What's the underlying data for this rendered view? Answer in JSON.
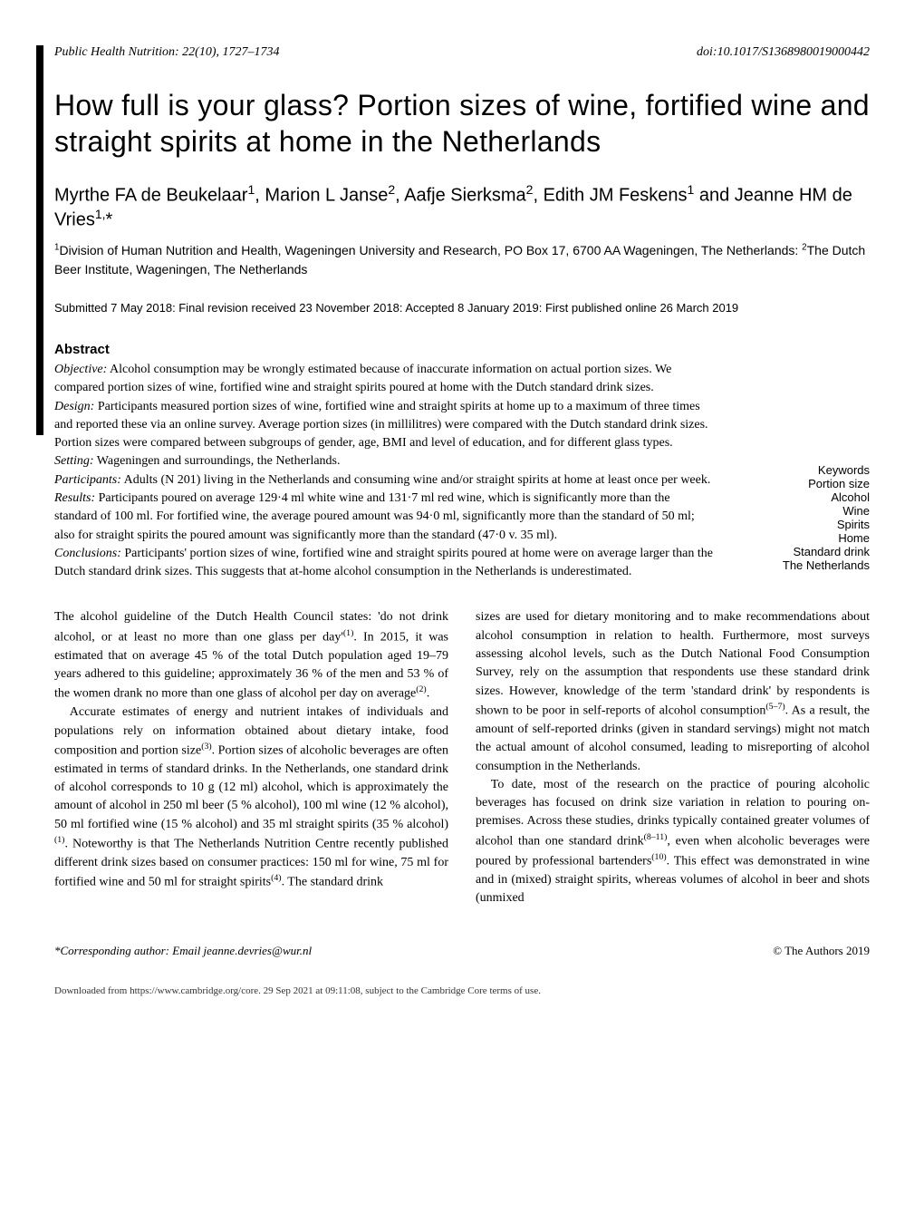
{
  "header": {
    "journal": "Public Health Nutrition: 22(10), 1727–1734",
    "doi": "doi:10.1017/S1368980019000442"
  },
  "title": "How full is your glass? Portion sizes of wine, fortified wine and straight spirits at home in the Netherlands",
  "authors_html": "Myrthe FA de Beukelaar<sup>1</sup>, Marion L Janse<sup>2</sup>, Aafje Sierksma<sup>2</sup>, Edith JM Feskens<sup>1</sup> and Jeanne HM de Vries<sup>1,</sup>*",
  "affiliations_html": "<sup>1</sup>Division of Human Nutrition and Health, Wageningen University and Research, PO Box 17, 6700 AA Wageningen, The Netherlands: <sup>2</sup>The Dutch Beer Institute, Wageningen, The Netherlands",
  "dates": "Submitted 7 May 2018: Final revision received 23 November 2018: Accepted 8 January 2019: First published online 26 March 2019",
  "abstract_heading": "Abstract",
  "abstract": {
    "objective": "Alcohol consumption may be wrongly estimated because of inaccurate information on actual portion sizes. We compared portion sizes of wine, fortified wine and straight spirits poured at home with the Dutch standard drink sizes.",
    "design": "Participants measured portion sizes of wine, fortified wine and straight spirits at home up to a maximum of three times and reported these via an online survey. Average portion sizes (in millilitres) were compared with the Dutch standard drink sizes. Portion sizes were compared between subgroups of gender, age, BMI and level of education, and for different glass types.",
    "setting": "Wageningen and surroundings, the Netherlands.",
    "participants": "Adults (N 201) living in the Netherlands and consuming wine and/or straight spirits at home at least once per week.",
    "results": "Participants poured on average 129·4 ml white wine and 131·7 ml red wine, which is significantly more than the standard of 100 ml. For fortified wine, the average poured amount was 94·0 ml, significantly more than the standard of 50 ml; also for straight spirits the poured amount was significantly more than the standard (47·0 v. 35 ml).",
    "conclusions": "Participants' portion sizes of wine, fortified wine and straight spirits poured at home were on average larger than the Dutch standard drink sizes. This suggests that at-home alcohol consumption in the Netherlands is underestimated."
  },
  "keywords_heading": "Keywords",
  "keywords": [
    "Portion size",
    "Alcohol",
    "Wine",
    "Spirits",
    "Home",
    "Standard drink",
    "The Netherlands"
  ],
  "body": {
    "col1_p1_html": "The alcohol guideline of the Dutch Health Council states: 'do not drink alcohol, or at least no more than one glass per day'<sup>(1)</sup>. In 2015, it was estimated that on average 45 % of the total Dutch population aged 19–79 years adhered to this guideline; approximately 36 % of the men and 53 % of the women drank no more than one glass of alcohol per day on average<sup>(2)</sup>.",
    "col1_p2_html": "Accurate estimates of energy and nutrient intakes of individuals and populations rely on information obtained about dietary intake, food composition and portion size<sup>(3)</sup>. Portion sizes of alcoholic beverages are often estimated in terms of standard drinks. In the Netherlands, one standard drink of alcohol corresponds to 10 g (12 ml) alcohol, which is approximately the amount of alcohol in 250 ml beer (5 % alcohol), 100 ml wine (12 % alcohol), 50 ml fortified wine (15 % alcohol) and 35 ml straight spirits (35 % alcohol)<sup>(1)</sup>. Noteworthy is that The Netherlands Nutrition Centre recently published different drink sizes based on consumer practices: 150 ml for wine, 75 ml for fortified wine and 50 ml for straight spirits<sup>(4)</sup>. The standard drink",
    "col2_p1_html": "sizes are used for dietary monitoring and to make recommendations about alcohol consumption in relation to health. Furthermore, most surveys assessing alcohol levels, such as the Dutch National Food Consumption Survey, rely on the assumption that respondents use these standard drink sizes. However, knowledge of the term 'standard drink' by respondents is shown to be poor in self-reports of alcohol consumption<sup>(5–7)</sup>. As a result, the amount of self-reported drinks (given in standard servings) might not match the actual amount of alcohol consumed, leading to misreporting of alcohol consumption in the Netherlands.",
    "col2_p2_html": "To date, most of the research on the practice of pouring alcoholic beverages has focused on drink size variation in relation to pouring on-premises. Across these studies, drinks typically contained greater volumes of alcohol than one standard drink<sup>(8–11)</sup>, even when alcoholic beverages were poured by professional bartenders<sup>(10)</sup>. This effect was demonstrated in wine and in (mixed) straight spirits, whereas volumes of alcohol in beer and shots (unmixed"
  },
  "footer": {
    "corresponding": "*Corresponding author: Email jeanne.devries@wur.nl",
    "copyright": "© The Authors 2019"
  },
  "download_note": "Downloaded from https://www.cambridge.org/core. 29 Sep 2021 at 09:11:08, subject to the Cambridge Core terms of use."
}
